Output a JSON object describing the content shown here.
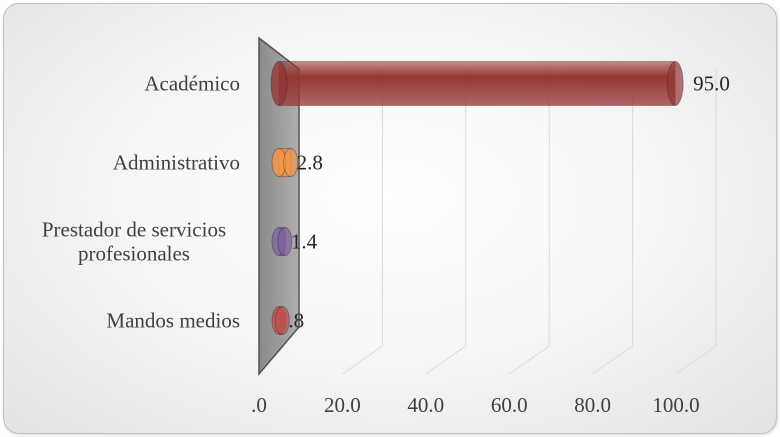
{
  "chart_data": {
    "type": "bar",
    "orientation": "horizontal",
    "style": "3d-cylinder",
    "categories": [
      "Académico",
      "Administrativo",
      "Prestador de servicios profesionales",
      "Mandos medios"
    ],
    "category_lines": [
      [
        "Académico"
      ],
      [
        "Administrativo"
      ],
      [
        "Prestador de servicios",
        "profesionales"
      ],
      [
        "Mandos medios"
      ]
    ],
    "values": [
      95.0,
      2.8,
      1.4,
      0.8
    ],
    "value_labels": [
      "95.0",
      "2.8",
      "1.4",
      ".8"
    ],
    "bar_colors": [
      "#953735",
      "#f79646",
      "#8064a2",
      "#c0504d"
    ],
    "x_ticks": [
      0,
      20,
      40,
      60,
      80,
      100
    ],
    "x_tick_labels": [
      ".0",
      "20.0",
      "40.0",
      "60.0",
      "80.0",
      "100.0"
    ],
    "xlim": [
      0,
      100
    ],
    "title": "",
    "xlabel": "",
    "ylabel": "",
    "grid": "vertical",
    "legend": "none"
  }
}
